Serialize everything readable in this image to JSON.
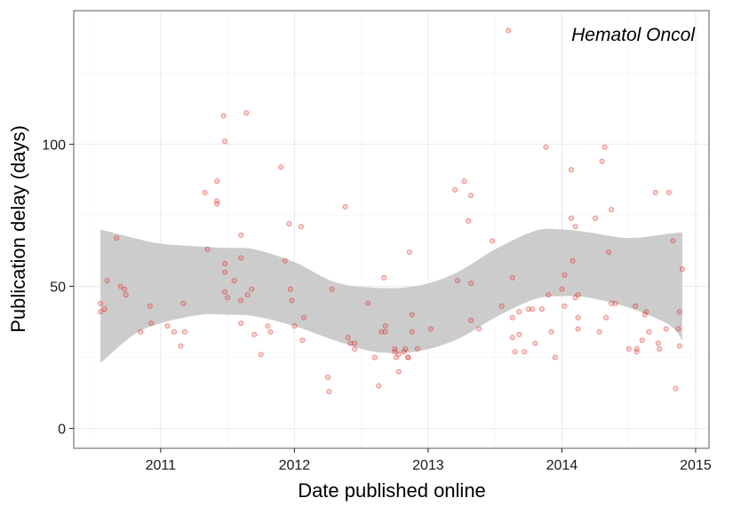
{
  "chart_data": {
    "type": "scatter",
    "title": "",
    "annotation": "Hematol Oncol",
    "xlabel": "Date published online",
    "ylabel": "Publication delay (days)",
    "x_unit": "year (decimal)",
    "xlim": [
      2010.35,
      2015.1
    ],
    "ylim": [
      -7,
      147
    ],
    "x_ticks": [
      {
        "value": 2011,
        "label": "2011"
      },
      {
        "value": 2012,
        "label": "2012"
      },
      {
        "value": 2013,
        "label": "2013"
      },
      {
        "value": 2014,
        "label": "2014"
      },
      {
        "value": 2015,
        "label": "2015"
      }
    ],
    "y_ticks": [
      {
        "value": 0,
        "label": "0"
      },
      {
        "value": 50,
        "label": "50"
      },
      {
        "value": 100,
        "label": "100"
      }
    ],
    "grid": true,
    "smooth_band": {
      "x": [
        2010.55,
        2010.8,
        2011.0,
        2011.3,
        2011.5,
        2011.7,
        2012.0,
        2012.3,
        2012.6,
        2012.9,
        2013.2,
        2013.5,
        2013.8,
        2014.0,
        2014.2,
        2014.5,
        2014.8,
        2014.9
      ],
      "lower": [
        23,
        33,
        37,
        40,
        40,
        39.5,
        36,
        31,
        27,
        27,
        31,
        39,
        45.5,
        46.5,
        46,
        42.5,
        36.5,
        31
      ],
      "upper": [
        70,
        67,
        65,
        64,
        63.5,
        63,
        58.5,
        51.5,
        49.5,
        50,
        54.5,
        63,
        69.5,
        70,
        69,
        67,
        68.5,
        69
      ]
    },
    "points": [
      [
        2010.55,
        44
      ],
      [
        2010.55,
        41
      ],
      [
        2010.58,
        42
      ],
      [
        2010.6,
        52
      ],
      [
        2010.67,
        67
      ],
      [
        2010.7,
        50
      ],
      [
        2010.73,
        49
      ],
      [
        2010.74,
        47
      ],
      [
        2010.85,
        34
      ],
      [
        2010.92,
        43
      ],
      [
        2010.93,
        37
      ],
      [
        2011.05,
        36
      ],
      [
        2011.1,
        34
      ],
      [
        2011.15,
        29
      ],
      [
        2011.17,
        44
      ],
      [
        2011.18,
        34
      ],
      [
        2011.33,
        83
      ],
      [
        2011.35,
        63
      ],
      [
        2011.42,
        87
      ],
      [
        2011.42,
        80
      ],
      [
        2011.42,
        79
      ],
      [
        2011.47,
        110
      ],
      [
        2011.48,
        101
      ],
      [
        2011.48,
        58
      ],
      [
        2011.48,
        55
      ],
      [
        2011.48,
        48
      ],
      [
        2011.5,
        46
      ],
      [
        2011.55,
        52
      ],
      [
        2011.6,
        68
      ],
      [
        2011.6,
        60
      ],
      [
        2011.6,
        45
      ],
      [
        2011.6,
        37
      ],
      [
        2011.64,
        111
      ],
      [
        2011.65,
        47
      ],
      [
        2011.68,
        49
      ],
      [
        2011.7,
        33
      ],
      [
        2011.75,
        26
      ],
      [
        2011.8,
        36
      ],
      [
        2011.82,
        34
      ],
      [
        2011.9,
        92
      ],
      [
        2011.93,
        59
      ],
      [
        2011.96,
        72
      ],
      [
        2011.97,
        49
      ],
      [
        2011.98,
        45
      ],
      [
        2012.0,
        36
      ],
      [
        2012.05,
        71
      ],
      [
        2012.07,
        39
      ],
      [
        2012.06,
        31
      ],
      [
        2012.25,
        18
      ],
      [
        2012.26,
        13
      ],
      [
        2012.28,
        49
      ],
      [
        2012.38,
        78
      ],
      [
        2012.4,
        32
      ],
      [
        2012.42,
        30
      ],
      [
        2012.45,
        28
      ],
      [
        2012.45,
        30
      ],
      [
        2012.55,
        44
      ],
      [
        2012.6,
        25
      ],
      [
        2012.63,
        15
      ],
      [
        2012.65,
        34
      ],
      [
        2012.67,
        53
      ],
      [
        2012.68,
        34
      ],
      [
        2012.68,
        36
      ],
      [
        2012.75,
        28
      ],
      [
        2012.75,
        27
      ],
      [
        2012.76,
        25
      ],
      [
        2012.78,
        26
      ],
      [
        2012.78,
        20
      ],
      [
        2012.82,
        27
      ],
      [
        2012.83,
        28
      ],
      [
        2012.85,
        25
      ],
      [
        2012.85,
        25
      ],
      [
        2012.86,
        62
      ],
      [
        2012.88,
        40
      ],
      [
        2012.88,
        34
      ],
      [
        2012.92,
        28
      ],
      [
        2013.02,
        35
      ],
      [
        2013.2,
        84
      ],
      [
        2013.22,
        52
      ],
      [
        2013.27,
        87
      ],
      [
        2013.3,
        73
      ],
      [
        2013.32,
        82
      ],
      [
        2013.32,
        51
      ],
      [
        2013.32,
        38
      ],
      [
        2013.38,
        35
      ],
      [
        2013.48,
        66
      ],
      [
        2013.55,
        43
      ],
      [
        2013.6,
        140
      ],
      [
        2013.63,
        53
      ],
      [
        2013.63,
        39
      ],
      [
        2013.63,
        32
      ],
      [
        2013.65,
        27
      ],
      [
        2013.68,
        33
      ],
      [
        2013.68,
        41
      ],
      [
        2013.72,
        27
      ],
      [
        2013.75,
        42
      ],
      [
        2013.78,
        42
      ],
      [
        2013.8,
        30
      ],
      [
        2013.85,
        42
      ],
      [
        2013.88,
        99
      ],
      [
        2013.9,
        47
      ],
      [
        2013.92,
        34
      ],
      [
        2013.95,
        25
      ],
      [
        2014.0,
        49
      ],
      [
        2014.02,
        54
      ],
      [
        2014.02,
        43
      ],
      [
        2014.07,
        91
      ],
      [
        2014.07,
        74
      ],
      [
        2014.08,
        59
      ],
      [
        2014.1,
        71
      ],
      [
        2014.1,
        46
      ],
      [
        2014.12,
        47
      ],
      [
        2014.12,
        39
      ],
      [
        2014.12,
        35
      ],
      [
        2014.25,
        74
      ],
      [
        2014.28,
        34
      ],
      [
        2014.3,
        94
      ],
      [
        2014.32,
        99
      ],
      [
        2014.33,
        39
      ],
      [
        2014.35,
        62
      ],
      [
        2014.37,
        77
      ],
      [
        2014.37,
        44
      ],
      [
        2014.4,
        44
      ],
      [
        2014.5,
        28
      ],
      [
        2014.55,
        43
      ],
      [
        2014.56,
        28
      ],
      [
        2014.56,
        27
      ],
      [
        2014.6,
        31
      ],
      [
        2014.62,
        40
      ],
      [
        2014.63,
        41
      ],
      [
        2014.65,
        34
      ],
      [
        2014.7,
        83
      ],
      [
        2014.72,
        30
      ],
      [
        2014.73,
        28
      ],
      [
        2014.78,
        35
      ],
      [
        2014.8,
        83
      ],
      [
        2014.83,
        66
      ],
      [
        2014.85,
        14
      ],
      [
        2014.87,
        35
      ],
      [
        2014.88,
        41
      ],
      [
        2014.88,
        29
      ],
      [
        2014.9,
        56
      ]
    ]
  }
}
